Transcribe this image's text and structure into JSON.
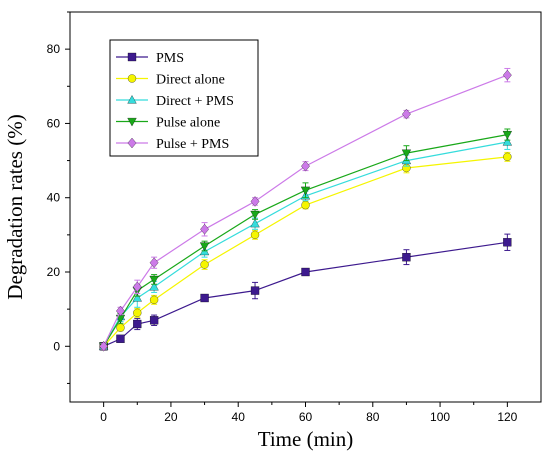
{
  "chart_data": {
    "type": "line",
    "xlabel": "Time (min)",
    "ylabel": "Degradation rates (%)",
    "xlim": [
      -10,
      130
    ],
    "ylim": [
      -15,
      90
    ],
    "x_ticks": [
      0,
      20,
      40,
      60,
      80,
      100,
      120
    ],
    "y_ticks": [
      0,
      20,
      40,
      60,
      80
    ],
    "x": [
      0,
      5,
      10,
      15,
      30,
      45,
      60,
      90,
      120
    ],
    "grid": false,
    "legend_position": "top-left",
    "series": [
      {
        "name": "PMS",
        "marker": "square",
        "color": "#3d1a8e",
        "values": [
          0,
          2,
          6,
          7,
          13,
          15,
          20,
          24,
          28
        ],
        "errors": [
          1,
          0.6,
          1.5,
          1.4,
          0.8,
          2.2,
          0.7,
          2,
          2.2
        ]
      },
      {
        "name": "Direct alone",
        "marker": "circle",
        "color": "#f5f500",
        "values": [
          0,
          5,
          9,
          12.5,
          22,
          30,
          38,
          48,
          51
        ],
        "errors": [
          0.8,
          0.8,
          1.2,
          1.2,
          1.3,
          1.2,
          1,
          1.3,
          1.2
        ]
      },
      {
        "name": "Direct + PMS",
        "marker": "triangle-up",
        "color": "#35dcdc",
        "values": [
          0,
          8,
          13,
          16,
          25.5,
          33,
          40.5,
          50,
          55
        ],
        "errors": [
          0.8,
          1.3,
          2.5,
          1.5,
          1.5,
          1.5,
          1.3,
          1.5,
          2
        ]
      },
      {
        "name": "Pulse alone",
        "marker": "triangle-down",
        "color": "#19a819",
        "values": [
          0,
          7.5,
          15,
          18,
          27,
          35.5,
          42,
          52,
          57
        ],
        "errors": [
          0.8,
          1.3,
          1.5,
          1.3,
          1.3,
          1.3,
          2,
          2,
          1.5
        ]
      },
      {
        "name": "Pulse + PMS",
        "marker": "diamond",
        "color": "#cc7ae8",
        "values": [
          0,
          9.5,
          16,
          22.5,
          31.5,
          39,
          48.5,
          62.5,
          73
        ],
        "errors": [
          0.8,
          1,
          1.8,
          1.5,
          1.8,
          1,
          1.2,
          1,
          1.8
        ]
      }
    ]
  }
}
